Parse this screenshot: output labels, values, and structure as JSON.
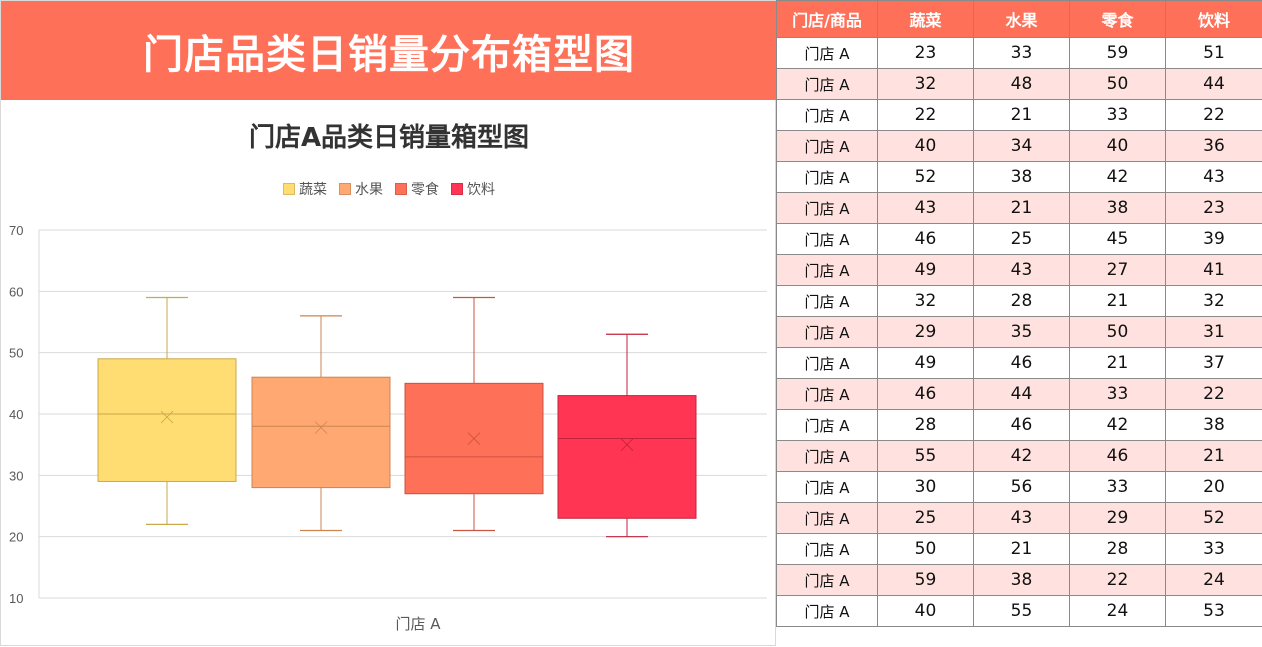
{
  "banner": {
    "title": "门店品类日销量分布箱型图"
  },
  "chart": {
    "title": "门店A品类日销量箱型图",
    "legend": [
      {
        "label": "蔬菜",
        "color": "#ffdd72"
      },
      {
        "label": "水果",
        "color": "#ffa872"
      },
      {
        "label": "零食",
        "color": "#ff7059"
      },
      {
        "label": "饮料",
        "color": "#ff3553"
      }
    ],
    "x_label": "门店 A"
  },
  "chart_data": {
    "type": "box",
    "title": "门店A品类日销量箱型图",
    "categories": [
      "门店 A"
    ],
    "xlabel": "门店 A",
    "ylabel": "",
    "ylim": [
      10,
      70
    ],
    "yticks": [
      10,
      20,
      30,
      40,
      50,
      60,
      70
    ],
    "grid": true,
    "legend_position": "top",
    "series": [
      {
        "name": "蔬菜",
        "color": "#ffdd72",
        "stroke": "#c9a94a",
        "min": 22,
        "q1": 29,
        "median": 40,
        "q3": 49,
        "max": 59,
        "mean": 39.5,
        "values": [
          23,
          32,
          22,
          40,
          52,
          43,
          46,
          49,
          32,
          29,
          49,
          46,
          28,
          55,
          30,
          25,
          50,
          59,
          40
        ]
      },
      {
        "name": "水果",
        "color": "#ffa872",
        "stroke": "#cc8450",
        "min": 21,
        "q1": 28,
        "median": 38,
        "q3": 46,
        "max": 56,
        "mean": 37.8,
        "values": [
          33,
          48,
          21,
          34,
          38,
          21,
          25,
          43,
          28,
          35,
          46,
          44,
          46,
          42,
          56,
          43,
          21,
          38,
          55
        ]
      },
      {
        "name": "零食",
        "color": "#ff7059",
        "stroke": "#c85540",
        "min": 21,
        "q1": 27,
        "median": 33,
        "q3": 45,
        "max": 59,
        "mean": 36.0,
        "values": [
          59,
          50,
          33,
          40,
          42,
          38,
          45,
          27,
          21,
          50,
          21,
          33,
          42,
          46,
          33,
          29,
          28,
          22,
          24
        ]
      },
      {
        "name": "饮料",
        "color": "#ff3553",
        "stroke": "#c2223c",
        "min": 20,
        "q1": 23,
        "median": 36,
        "q3": 43,
        "max": 53,
        "mean": 35.0,
        "values": [
          51,
          44,
          22,
          36,
          43,
          23,
          39,
          41,
          32,
          31,
          37,
          22,
          38,
          21,
          20,
          52,
          33,
          24,
          53
        ]
      }
    ]
  },
  "table": {
    "headers": [
      "门店/商品",
      "蔬菜",
      "水果",
      "零食",
      "饮料"
    ],
    "rows": [
      [
        "门店 A",
        "23",
        "33",
        "59",
        "51"
      ],
      [
        "门店 A",
        "32",
        "48",
        "50",
        "44"
      ],
      [
        "门店 A",
        "22",
        "21",
        "33",
        "22"
      ],
      [
        "门店 A",
        "40",
        "34",
        "40",
        "36"
      ],
      [
        "门店 A",
        "52",
        "38",
        "42",
        "43"
      ],
      [
        "门店 A",
        "43",
        "21",
        "38",
        "23"
      ],
      [
        "门店 A",
        "46",
        "25",
        "45",
        "39"
      ],
      [
        "门店 A",
        "49",
        "43",
        "27",
        "41"
      ],
      [
        "门店 A",
        "32",
        "28",
        "21",
        "32"
      ],
      [
        "门店 A",
        "29",
        "35",
        "50",
        "31"
      ],
      [
        "门店 A",
        "49",
        "46",
        "21",
        "37"
      ],
      [
        "门店 A",
        "46",
        "44",
        "33",
        "22"
      ],
      [
        "门店 A",
        "28",
        "46",
        "42",
        "38"
      ],
      [
        "门店 A",
        "55",
        "42",
        "46",
        "21"
      ],
      [
        "门店 A",
        "30",
        "56",
        "33",
        "20"
      ],
      [
        "门店 A",
        "25",
        "43",
        "29",
        "52"
      ],
      [
        "门店 A",
        "50",
        "21",
        "28",
        "33"
      ],
      [
        "门店 A",
        "59",
        "38",
        "22",
        "24"
      ],
      [
        "门店 A",
        "40",
        "55",
        "24",
        "53"
      ]
    ]
  }
}
